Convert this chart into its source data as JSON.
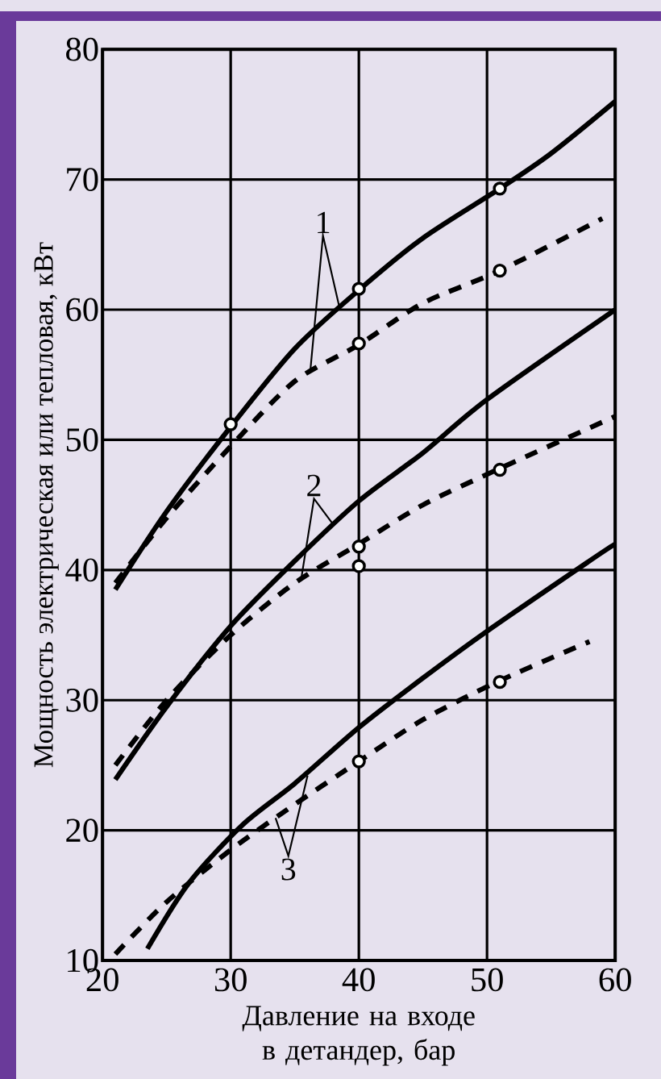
{
  "chart_data": {
    "type": "line",
    "xlabel": "Давление на входе в детандер, бар",
    "ylabel": "Мощность электрическая или тепловая, кВт",
    "xlim": [
      20,
      60
    ],
    "ylim": [
      10,
      80
    ],
    "xticks": [
      20,
      30,
      40,
      50,
      60
    ],
    "yticks": [
      10,
      20,
      30,
      40,
      50,
      60,
      70,
      80
    ],
    "grid": true,
    "marker": "none",
    "series": [
      {
        "color": "#000000",
        "line_style": "solid",
        "x": [
          21,
          25,
          30,
          35,
          40,
          45,
          51,
          55,
          60
        ],
        "values": [
          38.5,
          44.5,
          51,
          57,
          61.5,
          65.5,
          69.3,
          72,
          76
        ]
      },
      {
        "color": "#000000",
        "line_style": "dashed",
        "x": [
          21,
          25,
          30,
          35,
          40,
          45,
          51,
          59
        ],
        "values": [
          39,
          44,
          49.5,
          54.5,
          57.3,
          60.5,
          63,
          67
        ]
      },
      {
        "color": "#000000",
        "line_style": "solid",
        "x": [
          21,
          25,
          30,
          35,
          40,
          45,
          50,
          60
        ],
        "values": [
          23.9,
          29.5,
          35.7,
          40.7,
          45.3,
          49,
          53.1,
          60
        ]
      },
      {
        "color": "#000000",
        "line_style": "dashed",
        "x": [
          21,
          25,
          30,
          35,
          40,
          45,
          51,
          60
        ],
        "values": [
          25,
          30,
          35,
          39,
          42,
          45,
          47.8,
          51.8
        ]
      },
      {
        "color": "#000000",
        "line_style": "solid",
        "x": [
          23.5,
          26.7,
          30.9,
          35,
          40,
          45,
          50,
          58,
          60
        ],
        "values": [
          10.9,
          15.9,
          20.4,
          23.6,
          27.9,
          31.7,
          35.3,
          40.7,
          42
        ]
      },
      {
        "color": "#000000",
        "line_style": "dashed",
        "x": [
          21,
          25,
          30,
          35,
          40,
          45,
          51,
          58
        ],
        "values": [
          10.5,
          14.5,
          18.5,
          22,
          25.3,
          28.5,
          31.5,
          34.5
        ]
      },
      {
        "type": "scatter",
        "marker": "circle",
        "color": "#000000",
        "x": [
          30,
          40,
          51,
          40,
          51,
          40,
          40,
          51,
          40,
          51
        ],
        "values": [
          51.2,
          61.6,
          69.3,
          57.4,
          63,
          41.8,
          40.3,
          47.7,
          25.3,
          31.4
        ]
      }
    ],
    "annotations": [
      {
        "text": "1",
        "x": 38.5,
        "y": 60.1
      },
      {
        "text": "2",
        "x": 38,
        "y": 43.5
      },
      {
        "text": "3",
        "x": 36,
        "y": 24.2
      }
    ]
  }
}
